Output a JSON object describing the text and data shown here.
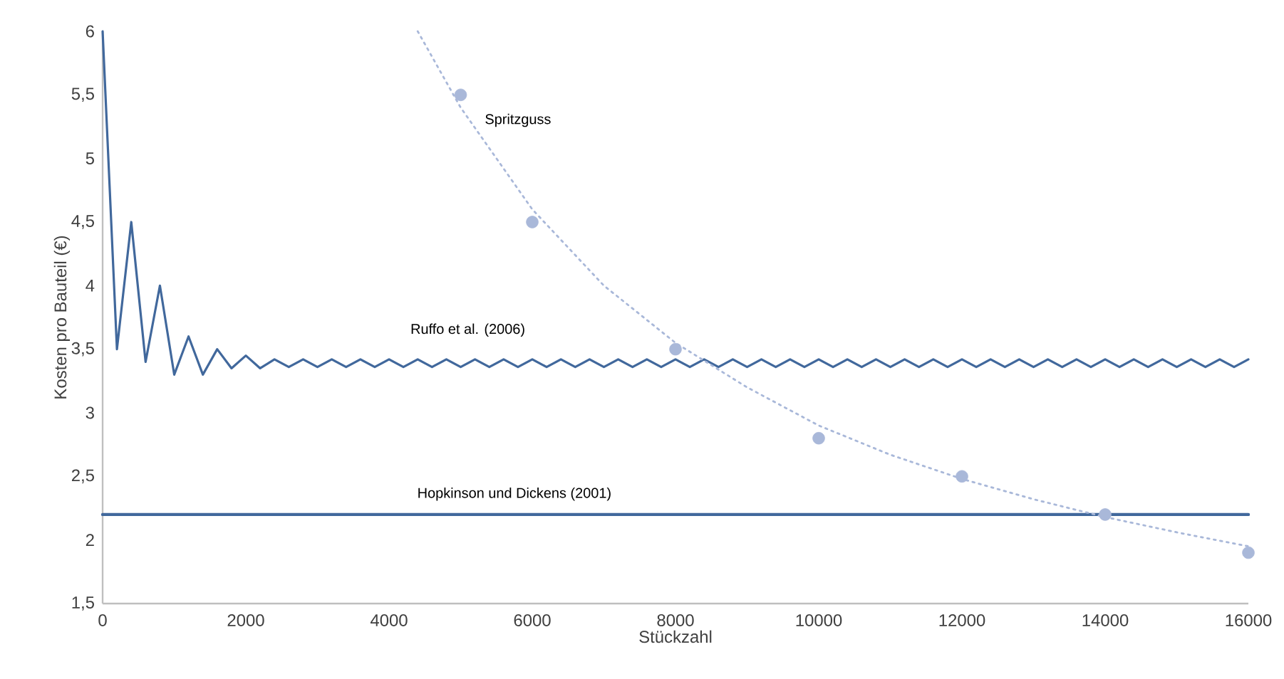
{
  "chart_data": {
    "type": "line",
    "xlabel": "Stückzahl",
    "ylabel": "Kosten pro Bauteil (€)",
    "xlim": [
      0,
      16000
    ],
    "xticks": [
      0,
      2000,
      4000,
      6000,
      8000,
      10000,
      12000,
      14000,
      16000
    ],
    "ylim": [
      1.5,
      6
    ],
    "yticks": [
      {
        "value": 1.5,
        "label": "1,5"
      },
      2,
      {
        "value": 2.5,
        "label": "2,5"
      },
      3,
      {
        "value": 3.5,
        "label": "3,5"
      },
      4,
      {
        "value": 4.5,
        "label": "4,5"
      },
      5,
      {
        "value": 5.5,
        "label": "5,5"
      },
      6
    ],
    "grid": false,
    "legend": false,
    "series": [
      {
        "name": "Ruffo et al. (2006)",
        "color": "#41689c",
        "line_style": "solid",
        "marker": "none",
        "x": [
          0,
          200,
          400,
          600,
          800,
          1000,
          1200,
          1400,
          1600,
          1800,
          2000,
          2200,
          2400,
          2600,
          2800,
          3000,
          3200,
          3400,
          3600,
          3800,
          4000,
          4200,
          4400,
          4600,
          4800,
          5000,
          5200,
          5400,
          5600,
          5800,
          6000,
          6200,
          6400,
          6600,
          6800,
          7000,
          7200,
          7400,
          7600,
          7800,
          8000,
          8200,
          8400,
          8600,
          8800,
          9000,
          9200,
          9400,
          9600,
          9800,
          10000,
          10200,
          10400,
          10600,
          10800,
          11000,
          11200,
          11400,
          11600,
          11800,
          12000,
          12200,
          12400,
          12600,
          12800,
          13000,
          13200,
          13400,
          13600,
          13800,
          14000,
          14200,
          14400,
          14600,
          14800,
          15000,
          15200,
          15400,
          15600,
          15800,
          16000
        ],
        "values": [
          6,
          3.5,
          4.5,
          3.4,
          4.0,
          3.3,
          3.6,
          3.3,
          3.5,
          3.35,
          3.45,
          3.35,
          3.42,
          3.36,
          3.42,
          3.36,
          3.42,
          3.36,
          3.42,
          3.36,
          3.42,
          3.36,
          3.42,
          3.36,
          3.42,
          3.36,
          3.42,
          3.36,
          3.42,
          3.36,
          3.42,
          3.36,
          3.42,
          3.36,
          3.42,
          3.36,
          3.42,
          3.36,
          3.42,
          3.36,
          3.42,
          3.36,
          3.42,
          3.36,
          3.42,
          3.36,
          3.42,
          3.36,
          3.42,
          3.36,
          3.42,
          3.36,
          3.42,
          3.36,
          3.42,
          3.36,
          3.42,
          3.36,
          3.42,
          3.36,
          3.42,
          3.36,
          3.42,
          3.36,
          3.42,
          3.36,
          3.42,
          3.36,
          3.42,
          3.36,
          3.42,
          3.36,
          3.42,
          3.36,
          3.42,
          3.36,
          3.42,
          3.36,
          3.42,
          3.36,
          3.42
        ]
      },
      {
        "name": "Hopkinson und Dickens (2001)",
        "color": "#41689c",
        "line_style": "solid",
        "marker": "none",
        "x": [
          0,
          16000
        ],
        "values": [
          2.2,
          2.2
        ]
      },
      {
        "name": "Spritzguss",
        "type": "scatter",
        "color": "#a9b8d9",
        "marker": "circle",
        "x": [
          5000,
          6000,
          8000,
          10000,
          12000,
          14000,
          16000
        ],
        "values": [
          5.5,
          4.5,
          3.5,
          2.8,
          2.5,
          2.2,
          1.9
        ]
      },
      {
        "color": "#a9b8d9",
        "line_style": "dotted",
        "marker": "none",
        "x": [
          4400,
          5000,
          6000,
          7000,
          8000,
          9000,
          10000,
          11000,
          12000,
          13000,
          14000,
          15000,
          16000
        ],
        "values": [
          6,
          5.4,
          4.6,
          4.0,
          3.55,
          3.2,
          2.9,
          2.67,
          2.48,
          2.32,
          2.18,
          2.06,
          1.95
        ]
      }
    ]
  }
}
